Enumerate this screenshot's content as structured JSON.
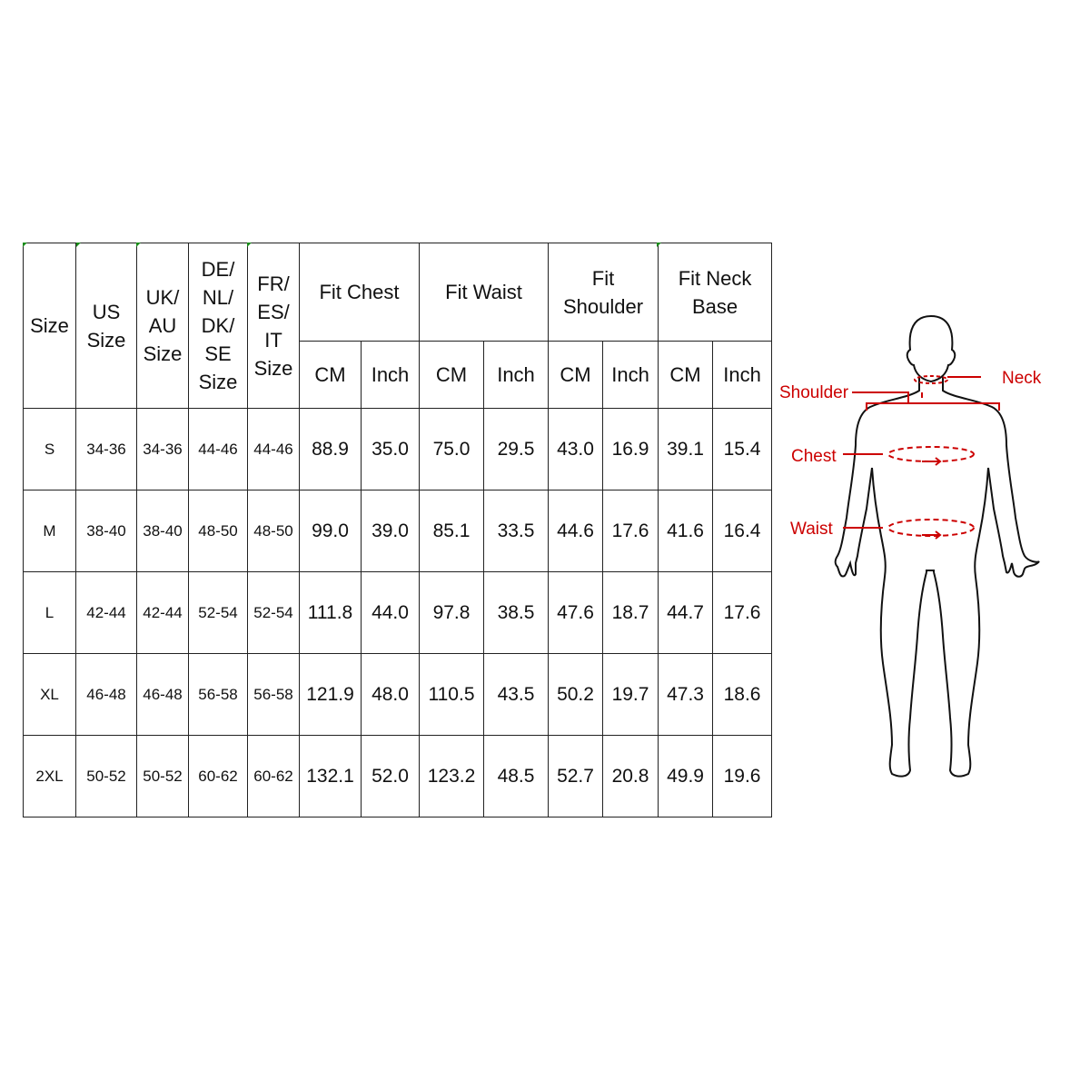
{
  "table": {
    "headers": {
      "size": "Size",
      "us": "US Size",
      "uk_au": "UK/ AU Size",
      "de_nl_dk_se": "DE/ NL/ DK/ SE Size",
      "fr_es_it": "FR/ ES/ IT Size",
      "fit_chest": "Fit Chest",
      "fit_waist": "Fit Waist",
      "fit_shoulder": "Fit Shoulder",
      "fit_neck_base": "Fit Neck Base"
    },
    "header_lines": {
      "us": [
        "US",
        "Size"
      ],
      "uk_au": [
        "UK/",
        "AU",
        "Size"
      ],
      "de": [
        "DE/",
        "NL/",
        "DK/",
        "SE",
        "Size"
      ],
      "fr": [
        "FR/",
        "ES/",
        "IT",
        "Size"
      ],
      "shoulder": [
        "Fit",
        "Shoulder"
      ],
      "neck": [
        "Fit Neck",
        "Base"
      ]
    },
    "units": [
      "CM",
      "Inch",
      "CM",
      "Inch",
      "CM",
      "Inch",
      "CM",
      "Inch"
    ],
    "rows": [
      [
        "S",
        "34-36",
        "34-36",
        "44-46",
        "44-46",
        "88.9",
        "35.0",
        "75.0",
        "29.5",
        "43.0",
        "16.9",
        "39.1",
        "15.4"
      ],
      [
        "M",
        "38-40",
        "38-40",
        "48-50",
        "48-50",
        "99.0",
        "39.0",
        "85.1",
        "33.5",
        "44.6",
        "17.6",
        "41.6",
        "16.4"
      ],
      [
        "L",
        "42-44",
        "42-44",
        "52-54",
        "52-54",
        "111.8",
        "44.0",
        "97.8",
        "38.5",
        "47.6",
        "18.7",
        "44.7",
        "17.6"
      ],
      [
        "XL",
        "46-48",
        "46-48",
        "56-58",
        "56-58",
        "121.9",
        "48.0",
        "110.5",
        "43.5",
        "50.2",
        "19.7",
        "47.3",
        "18.6"
      ],
      [
        "2XL",
        "50-52",
        "50-52",
        "60-62",
        "60-62",
        "132.1",
        "52.0",
        "123.2",
        "48.5",
        "52.7",
        "20.8",
        "49.9",
        "19.6"
      ]
    ]
  },
  "figure": {
    "labels": {
      "neck": "Neck",
      "shoulder": "Shoulder",
      "chest": "Chest",
      "waist": "Waist"
    },
    "accent_color": "#cc0000"
  }
}
